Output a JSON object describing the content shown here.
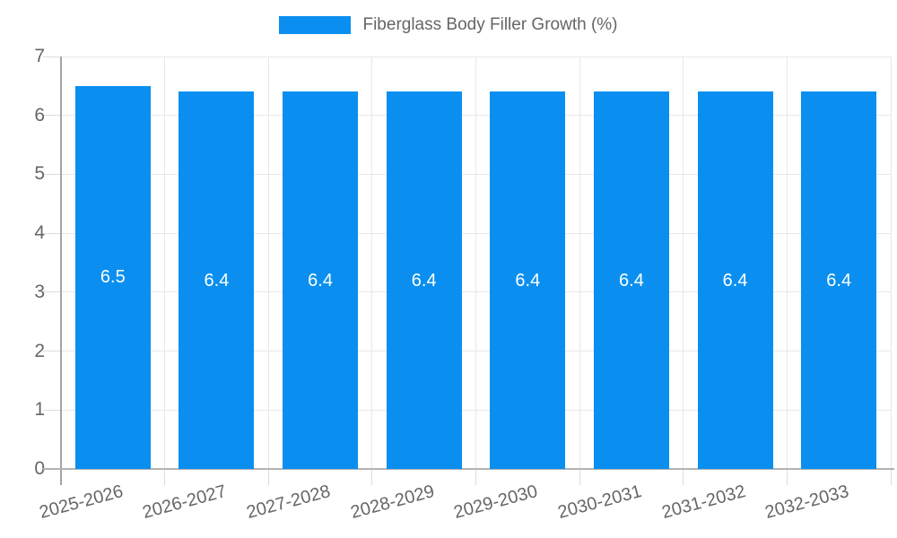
{
  "legend": {
    "label": "Fiberglass Body Filler Growth (%)"
  },
  "chart_data": {
    "type": "bar",
    "title": "Fiberglass Body Filler Growth (%)",
    "series_name": "Fiberglass Body Filler Growth (%)",
    "categories": [
      "2025-2026",
      "2026-2027",
      "2027-2028",
      "2028-2029",
      "2029-2030",
      "2030-2031",
      "2031-2032",
      "2032-2033"
    ],
    "values": [
      6.5,
      6.4,
      6.4,
      6.4,
      6.4,
      6.4,
      6.4,
      6.4
    ],
    "value_labels": [
      "6.5",
      "6.4",
      "6.4",
      "6.4",
      "6.4",
      "6.4",
      "6.4",
      "6.4"
    ],
    "xlabel": "",
    "ylabel": "",
    "ylim": [
      0,
      7
    ],
    "yticks": [
      0,
      1,
      2,
      3,
      4,
      5,
      6,
      7
    ],
    "grid": true,
    "legend_position": "top-center",
    "colors": {
      "bar": "#0a8ff0",
      "value_label": "#ffffff",
      "axis_text": "#666666",
      "gridline": "#e8e8e8",
      "axis_line": "#a3a3a3",
      "background": "#ffffff"
    }
  }
}
